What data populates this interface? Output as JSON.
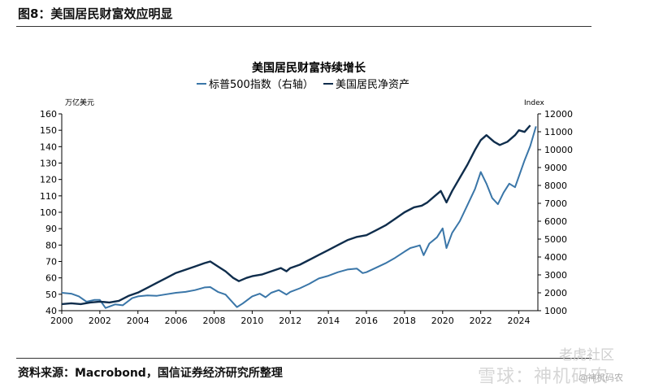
{
  "figure_title": "图8：美国居民财富效应明显",
  "source_note": "资料来源：Macrobond，国信证券经济研究所整理",
  "watermark": {
    "right_text": "老虎社区",
    "logo_text": "雪球：神机码农",
    "user_text": "@神机码农"
  },
  "chart_data": {
    "type": "line",
    "title": "美国居民财富持续增长",
    "left_axis_label": "万亿美元",
    "right_axis_label": "Index",
    "x_ticks": [
      "2000",
      "2002",
      "2004",
      "2006",
      "2008",
      "2010",
      "2012",
      "2014",
      "2016",
      "2018",
      "2020",
      "2022",
      "2024"
    ],
    "x_range": [
      2000,
      2025
    ],
    "left_ticks": [
      "40",
      "50",
      "60",
      "70",
      "80",
      "90",
      "100",
      "110",
      "120",
      "130",
      "140",
      "150",
      "160"
    ],
    "ylim_left": [
      40,
      160
    ],
    "right_ticks": [
      "1000",
      "2000",
      "3000",
      "4000",
      "5000",
      "6000",
      "7000",
      "8000",
      "9000",
      "10000",
      "11000",
      "12000"
    ],
    "ylim_right": [
      1000,
      12000
    ],
    "colors": {
      "sp500": "#3a76a8",
      "net_worth": "#0f2d4c"
    },
    "series": [
      {
        "name": "标普500指数（右轴）",
        "axis": "right",
        "points": [
          [
            2000.0,
            2000
          ],
          [
            2000.5,
            1950
          ],
          [
            2000.9,
            1800
          ],
          [
            2001.3,
            1500
          ],
          [
            2001.7,
            1600
          ],
          [
            2002.0,
            1600
          ],
          [
            2002.3,
            1150
          ],
          [
            2002.8,
            1350
          ],
          [
            2003.2,
            1300
          ],
          [
            2003.7,
            1700
          ],
          [
            2004.0,
            1800
          ],
          [
            2004.5,
            1850
          ],
          [
            2005.0,
            1830
          ],
          [
            2005.5,
            1920
          ],
          [
            2006.0,
            2000
          ],
          [
            2006.5,
            2050
          ],
          [
            2007.0,
            2150
          ],
          [
            2007.5,
            2300
          ],
          [
            2007.8,
            2320
          ],
          [
            2008.2,
            2050
          ],
          [
            2008.6,
            1900
          ],
          [
            2008.9,
            1550
          ],
          [
            2009.2,
            1200
          ],
          [
            2009.5,
            1400
          ],
          [
            2010.0,
            1800
          ],
          [
            2010.4,
            1950
          ],
          [
            2010.7,
            1750
          ],
          [
            2011.0,
            2000
          ],
          [
            2011.4,
            2150
          ],
          [
            2011.8,
            1900
          ],
          [
            2012.0,
            2050
          ],
          [
            2012.5,
            2250
          ],
          [
            2013.0,
            2500
          ],
          [
            2013.5,
            2800
          ],
          [
            2014.0,
            2950
          ],
          [
            2014.5,
            3150
          ],
          [
            2015.0,
            3300
          ],
          [
            2015.5,
            3350
          ],
          [
            2015.8,
            3100
          ],
          [
            2016.0,
            3150
          ],
          [
            2016.5,
            3400
          ],
          [
            2017.0,
            3650
          ],
          [
            2017.5,
            3950
          ],
          [
            2018.0,
            4300
          ],
          [
            2018.3,
            4500
          ],
          [
            2018.8,
            4650
          ],
          [
            2019.0,
            4100
          ],
          [
            2019.3,
            4750
          ],
          [
            2019.7,
            5100
          ],
          [
            2020.0,
            5600
          ],
          [
            2020.2,
            4500
          ],
          [
            2020.5,
            5350
          ],
          [
            2020.9,
            6000
          ],
          [
            2021.3,
            6900
          ],
          [
            2021.7,
            7800
          ],
          [
            2022.0,
            8750
          ],
          [
            2022.3,
            8100
          ],
          [
            2022.6,
            7300
          ],
          [
            2022.9,
            6950
          ],
          [
            2023.2,
            7600
          ],
          [
            2023.5,
            8100
          ],
          [
            2023.8,
            7900
          ],
          [
            2024.0,
            8500
          ],
          [
            2024.3,
            9400
          ],
          [
            2024.6,
            10200
          ],
          [
            2024.9,
            11300
          ]
        ]
      },
      {
        "name": "美国居民净资产",
        "axis": "left",
        "points": [
          [
            2000.0,
            44
          ],
          [
            2000.5,
            44.5
          ],
          [
            2001.0,
            44
          ],
          [
            2001.5,
            45
          ],
          [
            2002.0,
            45.5
          ],
          [
            2002.5,
            45
          ],
          [
            2003.0,
            46
          ],
          [
            2003.5,
            49
          ],
          [
            2004.0,
            51
          ],
          [
            2004.5,
            54
          ],
          [
            2005.0,
            57
          ],
          [
            2005.5,
            60
          ],
          [
            2006.0,
            63
          ],
          [
            2006.5,
            65
          ],
          [
            2007.0,
            67
          ],
          [
            2007.5,
            69
          ],
          [
            2007.8,
            70
          ],
          [
            2008.2,
            67
          ],
          [
            2008.6,
            64
          ],
          [
            2009.0,
            60
          ],
          [
            2009.3,
            58
          ],
          [
            2009.7,
            60
          ],
          [
            2010.0,
            61
          ],
          [
            2010.5,
            62
          ],
          [
            2011.0,
            64
          ],
          [
            2011.5,
            66
          ],
          [
            2011.8,
            64
          ],
          [
            2012.0,
            66
          ],
          [
            2012.5,
            68
          ],
          [
            2013.0,
            71
          ],
          [
            2013.5,
            74
          ],
          [
            2014.0,
            77
          ],
          [
            2014.5,
            80
          ],
          [
            2015.0,
            83
          ],
          [
            2015.5,
            85
          ],
          [
            2016.0,
            86
          ],
          [
            2016.5,
            89
          ],
          [
            2017.0,
            92
          ],
          [
            2017.5,
            96
          ],
          [
            2018.0,
            100
          ],
          [
            2018.5,
            103
          ],
          [
            2018.9,
            104
          ],
          [
            2019.2,
            106
          ],
          [
            2019.6,
            110
          ],
          [
            2019.9,
            113
          ],
          [
            2020.2,
            106
          ],
          [
            2020.5,
            113
          ],
          [
            2020.9,
            121
          ],
          [
            2021.3,
            129
          ],
          [
            2021.7,
            138
          ],
          [
            2022.0,
            144
          ],
          [
            2022.3,
            147
          ],
          [
            2022.7,
            143
          ],
          [
            2023.0,
            141
          ],
          [
            2023.4,
            143
          ],
          [
            2023.8,
            147
          ],
          [
            2024.0,
            150
          ],
          [
            2024.3,
            149
          ],
          [
            2024.6,
            153
          ]
        ]
      }
    ]
  }
}
